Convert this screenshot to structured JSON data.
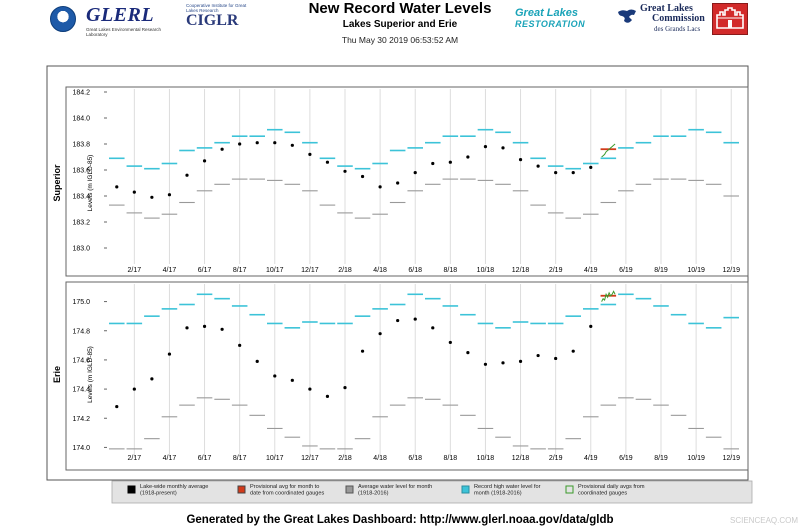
{
  "header": {
    "title": "New Record Water Levels",
    "subtitle": "Lakes Superior and Erie",
    "timestamp": "Thu May 30 2019 06:53:52 AM",
    "logos": {
      "glerl": "GLERL",
      "glerl_sub": "Great Lakes Environmental Research Laboratory",
      "ciglr_top": "Cooperative Institute for Great Lakes Research",
      "ciglr": "CIGLR",
      "glr_line1": "Great Lakes",
      "glr_line2": "RESTORATION",
      "glc_line1": "Great Lakes",
      "glc_line2": "Commission",
      "glc_line3": "des Grands Lacs"
    }
  },
  "footer": "Generated by the Great Lakes Dashboard: http://www.glerl.noaa.gov/data/gldb",
  "watermark": "SCIENCEAQ.COM",
  "colors": {
    "monthly": "#000000",
    "average": "#999999",
    "record": "#3cc3d8",
    "provisional_avg": "#d23a1a",
    "provisional_daily": "#3a9a2a",
    "grid": "#dddddd"
  },
  "legend": [
    {
      "key": "monthly",
      "label": "Lake-wide monthly average (1918-present)"
    },
    {
      "key": "provisional_avg",
      "label": "Provisional avg for month to date from coordinated gauges"
    },
    {
      "key": "average",
      "label": "Average water level for month (1918-2016)"
    },
    {
      "key": "record",
      "label": "Record high water level for month (1918-2016)"
    },
    {
      "key": "provisional_daily",
      "label": "Provisional daily avgs from coordinated gauges"
    }
  ],
  "chart_data": [
    {
      "type": "scatter",
      "panel_label": "Superior",
      "ylabel": "Levels (m IGLD-85)",
      "ylim": [
        182.8,
        184.2
      ],
      "yticks": [
        183.0,
        183.2,
        183.4,
        183.6,
        183.8,
        184.0,
        184.2
      ],
      "x_ticks": [
        "2/17",
        "4/17",
        "6/17",
        "8/17",
        "10/17",
        "12/17",
        "2/18",
        "4/18",
        "6/18",
        "8/18",
        "10/18",
        "12/18",
        "2/19",
        "4/19",
        "6/19",
        "8/19",
        "10/19",
        "12/19"
      ],
      "grid": "vertical",
      "months": [
        "1/17",
        "2/17",
        "3/17",
        "4/17",
        "5/17",
        "6/17",
        "7/17",
        "8/17",
        "9/17",
        "10/17",
        "11/17",
        "12/17",
        "1/18",
        "2/18",
        "3/18",
        "4/18",
        "5/18",
        "6/18",
        "7/18",
        "8/18",
        "9/18",
        "10/18",
        "11/18",
        "12/18",
        "1/19",
        "2/19",
        "3/19",
        "4/19",
        "5/19",
        "6/19",
        "7/19",
        "8/19",
        "9/19",
        "10/19",
        "11/19",
        "12/19"
      ],
      "series": [
        {
          "key": "monthly",
          "values": [
            183.47,
            183.43,
            183.39,
            183.41,
            183.56,
            183.67,
            183.76,
            183.8,
            183.81,
            183.81,
            183.79,
            183.72,
            183.66,
            183.59,
            183.55,
            183.47,
            183.5,
            183.58,
            183.65,
            183.66,
            183.7,
            183.78,
            183.77,
            183.68,
            183.63,
            183.58,
            183.58,
            183.62,
            null,
            null,
            null,
            null,
            null,
            null,
            null,
            null
          ]
        },
        {
          "key": "average",
          "values": [
            183.33,
            183.27,
            183.23,
            183.26,
            183.35,
            183.44,
            183.49,
            183.53,
            183.53,
            183.52,
            183.49,
            183.44,
            183.33,
            183.27,
            183.23,
            183.26,
            183.35,
            183.44,
            183.49,
            183.53,
            183.53,
            183.52,
            183.49,
            183.44,
            183.33,
            183.27,
            183.23,
            183.26,
            183.35,
            183.44,
            183.49,
            183.53,
            183.53,
            183.52,
            183.49,
            183.4
          ]
        },
        {
          "key": "record",
          "values": [
            183.69,
            183.63,
            183.61,
            183.65,
            183.75,
            183.77,
            183.81,
            183.86,
            183.86,
            183.91,
            183.89,
            183.81,
            183.69,
            183.63,
            183.61,
            183.65,
            183.75,
            183.77,
            183.81,
            183.86,
            183.86,
            183.91,
            183.89,
            183.81,
            183.69,
            183.63,
            183.61,
            183.65,
            183.69,
            183.77,
            183.81,
            183.86,
            183.86,
            183.91,
            183.89,
            183.81
          ]
        },
        {
          "key": "provisional_avg",
          "values": [
            null,
            null,
            null,
            null,
            null,
            null,
            null,
            null,
            null,
            null,
            null,
            null,
            null,
            null,
            null,
            null,
            null,
            null,
            null,
            null,
            null,
            null,
            null,
            null,
            null,
            null,
            null,
            null,
            183.76,
            null,
            null,
            null,
            null,
            null,
            null,
            null
          ]
        },
        {
          "key": "provisional_daily",
          "values": [
            183.7,
            183.71,
            183.72,
            183.74,
            183.75,
            183.76,
            183.77,
            183.78,
            183.79,
            183.8
          ]
        }
      ]
    },
    {
      "type": "scatter",
      "panel_label": "Erie",
      "ylabel": "Levels (m IGLD-85)",
      "ylim": [
        173.9,
        175.1
      ],
      "yticks": [
        174.0,
        174.2,
        174.4,
        174.6,
        174.8,
        175.0
      ],
      "x_ticks": [
        "2/17",
        "4/17",
        "6/17",
        "8/17",
        "10/17",
        "12/17",
        "2/18",
        "4/18",
        "6/18",
        "8/18",
        "10/18",
        "12/18",
        "2/19",
        "4/19",
        "6/19",
        "8/19",
        "10/19",
        "12/19"
      ],
      "grid": "vertical",
      "months": [
        "1/17",
        "2/17",
        "3/17",
        "4/17",
        "5/17",
        "6/17",
        "7/17",
        "8/17",
        "9/17",
        "10/17",
        "11/17",
        "12/17",
        "1/18",
        "2/18",
        "3/18",
        "4/18",
        "5/18",
        "6/18",
        "7/18",
        "8/18",
        "9/18",
        "10/18",
        "11/18",
        "12/18",
        "1/19",
        "2/19",
        "3/19",
        "4/19",
        "5/19",
        "6/19",
        "7/19",
        "8/19",
        "9/19",
        "10/19",
        "11/19",
        "12/19"
      ],
      "series": [
        {
          "key": "monthly",
          "values": [
            174.28,
            174.4,
            174.47,
            174.64,
            174.82,
            174.83,
            174.81,
            174.7,
            174.59,
            174.49,
            174.46,
            174.4,
            174.35,
            174.41,
            174.66,
            174.78,
            174.87,
            174.88,
            174.82,
            174.72,
            174.65,
            174.57,
            174.58,
            174.59,
            174.63,
            174.61,
            174.66,
            174.83,
            null,
            null,
            null,
            null,
            null,
            null,
            null,
            null
          ]
        },
        {
          "key": "average",
          "values": [
            173.99,
            173.99,
            174.06,
            174.21,
            174.29,
            174.34,
            174.33,
            174.29,
            174.22,
            174.13,
            174.07,
            174.01,
            173.99,
            173.99,
            174.06,
            174.21,
            174.29,
            174.34,
            174.33,
            174.29,
            174.22,
            174.13,
            174.07,
            174.01,
            173.99,
            173.99,
            174.06,
            174.21,
            174.29,
            174.34,
            174.33,
            174.29,
            174.22,
            174.13,
            174.07,
            173.99
          ]
        },
        {
          "key": "record",
          "values": [
            174.85,
            174.85,
            174.9,
            174.95,
            174.98,
            175.05,
            175.02,
            174.97,
            174.91,
            174.85,
            174.82,
            174.86,
            174.85,
            174.85,
            174.9,
            174.95,
            174.98,
            175.05,
            175.02,
            174.97,
            174.91,
            174.85,
            174.82,
            174.86,
            174.85,
            174.85,
            174.9,
            174.95,
            174.98,
            175.05,
            175.02,
            174.97,
            174.91,
            174.85,
            174.82,
            174.89
          ]
        },
        {
          "key": "provisional_avg",
          "values": [
            null,
            null,
            null,
            null,
            null,
            null,
            null,
            null,
            null,
            null,
            null,
            null,
            null,
            null,
            null,
            null,
            null,
            null,
            null,
            null,
            null,
            null,
            null,
            null,
            null,
            null,
            null,
            null,
            175.04,
            null,
            null,
            null,
            null,
            null,
            null,
            null
          ]
        },
        {
          "key": "provisional_daily",
          "values": [
            175.0,
            175.02,
            175.01,
            175.05,
            175.03,
            175.06,
            175.04,
            175.05,
            175.07,
            175.05
          ]
        }
      ]
    }
  ]
}
